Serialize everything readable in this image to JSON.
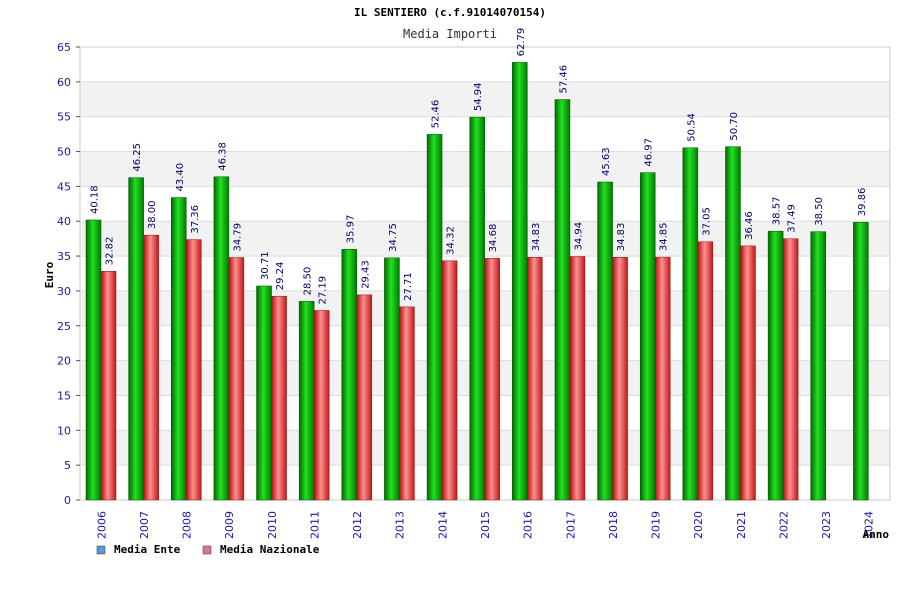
{
  "chart_data": {
    "type": "bar",
    "title": "IL SENTIERO (c.f.91014070154)",
    "subtitle": "Media Importi",
    "ylabel": "Euro",
    "xlabel": "Anno",
    "ylim": [
      0,
      65
    ],
    "yticks": [
      "0",
      "5",
      "10",
      "15",
      "20",
      "25",
      "30",
      "35",
      "40",
      "45",
      "50",
      "55",
      "60",
      "65"
    ],
    "categories": [
      "2006",
      "2007",
      "2008",
      "2009",
      "2010",
      "2011",
      "2012",
      "2013",
      "2014",
      "2015",
      "2016",
      "2017",
      "2018",
      "2019",
      "2020",
      "2021",
      "2022",
      "2023",
      "2024"
    ],
    "series": [
      {
        "name": "Media Ente",
        "values": [
          40.18,
          46.25,
          43.4,
          46.38,
          30.71,
          28.5,
          35.97,
          34.75,
          52.46,
          54.94,
          62.79,
          57.46,
          45.63,
          46.97,
          50.54,
          50.7,
          38.57,
          38.5,
          39.86
        ],
        "labels": [
          "40.18",
          "46.25",
          "43.40",
          "46.38",
          "30.71",
          "28.50",
          "35.97",
          "34.75",
          "52.46",
          "54.94",
          "62.79",
          "57.46",
          "45.63",
          "46.97",
          "50.54",
          "50.70",
          "38.57",
          "38.50",
          "39.86"
        ]
      },
      {
        "name": "Media Nazionale",
        "values": [
          32.82,
          38.0,
          37.36,
          34.79,
          29.24,
          27.19,
          29.43,
          27.71,
          34.32,
          34.68,
          34.83,
          34.94,
          34.83,
          34.85,
          37.05,
          36.46,
          37.49,
          null,
          null
        ],
        "labels": [
          "32.82",
          "38.00",
          "37.36",
          "34.79",
          "29.24",
          "27.19",
          "29.43",
          "27.71",
          "34.32",
          "34.68",
          "34.83",
          "34.94",
          "34.83",
          "34.85",
          "37.05",
          "36.46",
          "37.49",
          "",
          ""
        ]
      }
    ],
    "grid": true,
    "legend_position": "bottom-left",
    "colors": {
      "ente_bar": "#00c000",
      "nazionale_bar": "#e83030",
      "ente_legend": "#5b9bd5",
      "nazionale_legend": "#e070a0",
      "axis_text": "#1a1aa0"
    }
  }
}
